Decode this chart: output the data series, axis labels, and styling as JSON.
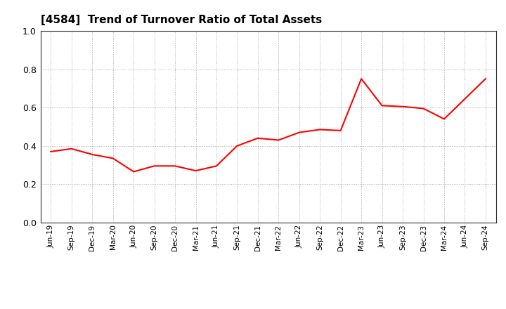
{
  "title": "[4584]  Trend of Turnover Ratio of Total Assets",
  "title_fontsize": 11,
  "title_fontweight": "bold",
  "line_color": "#FF0000",
  "line_width": 1.5,
  "background_color": "#FFFFFF",
  "grid_color": "#AAAAAA",
  "ylim": [
    0.0,
    1.0
  ],
  "yticks": [
    0.0,
    0.2,
    0.4,
    0.6,
    0.8,
    1.0
  ],
  "x_labels": [
    "Jun-19",
    "Sep-19",
    "Dec-19",
    "Mar-20",
    "Jun-20",
    "Sep-20",
    "Dec-20",
    "Mar-21",
    "Jun-21",
    "Sep-21",
    "Dec-21",
    "Mar-22",
    "Jun-22",
    "Sep-22",
    "Dec-22",
    "Mar-23",
    "Jun-23",
    "Sep-23",
    "Dec-23",
    "Mar-24",
    "Jun-24",
    "Sep-24"
  ],
  "values": [
    0.37,
    0.385,
    0.355,
    0.335,
    0.265,
    0.295,
    0.295,
    0.27,
    0.295,
    0.4,
    0.44,
    0.43,
    0.47,
    0.485,
    0.48,
    0.75,
    0.61,
    0.605,
    0.595,
    0.54,
    0.645,
    0.75
  ]
}
